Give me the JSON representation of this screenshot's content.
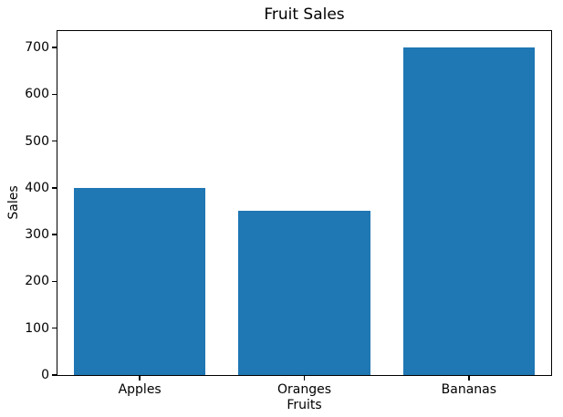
{
  "chart_data": {
    "type": "bar",
    "title": "Fruit Sales",
    "xlabel": "Fruits",
    "ylabel": "Sales",
    "categories": [
      "Apples",
      "Oranges",
      "Bananas"
    ],
    "values": [
      400,
      350,
      700
    ],
    "yticks": [
      0,
      100,
      200,
      300,
      400,
      500,
      600,
      700
    ],
    "ylim": [
      0,
      735
    ],
    "bar_width_fraction": 0.8,
    "bar_color": "#1f77b4",
    "background_color": "#ffffff",
    "spine_color": "#000000",
    "text_color": "#000000",
    "grid": false,
    "legend": null
  }
}
